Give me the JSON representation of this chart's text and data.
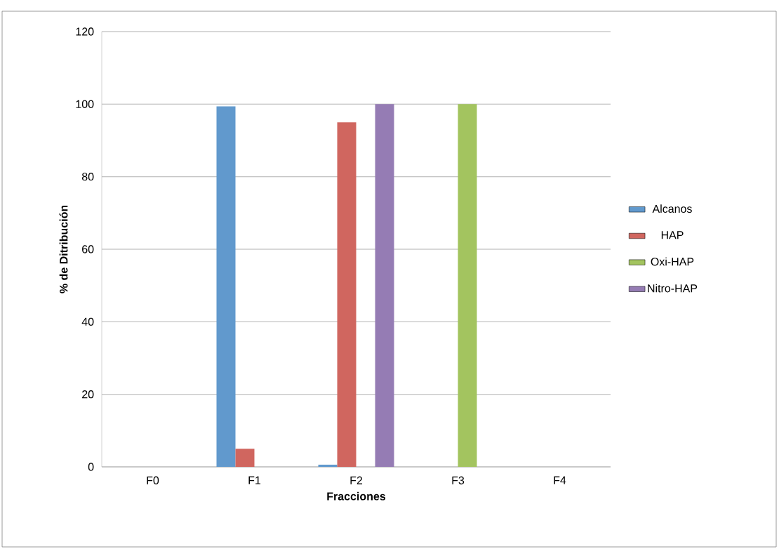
{
  "chart_data": {
    "type": "bar",
    "xlabel": "Fracciones",
    "ylabel": "% de Ditribución",
    "categories": [
      "F0",
      "F1",
      "F2",
      "F3",
      "F4"
    ],
    "series": [
      {
        "name": "Alcanos",
        "color": "#6199cd",
        "values": [
          0,
          99.4,
          0.6,
          0,
          0
        ]
      },
      {
        "name": "HAP",
        "color": "#d0665f",
        "values": [
          0,
          5,
          95,
          0,
          0
        ]
      },
      {
        "name": "Oxi-HAP",
        "color": "#a3c45f",
        "values": [
          0,
          0,
          0,
          100,
          0
        ]
      },
      {
        "name": "Nitro-HAP",
        "color": "#957cb4",
        "values": [
          0,
          0,
          100,
          0,
          0
        ]
      }
    ],
    "ylim": [
      0,
      120
    ],
    "yticks": [
      0,
      20,
      40,
      60,
      80,
      100,
      120
    ],
    "grid": "y",
    "legend": "right"
  }
}
